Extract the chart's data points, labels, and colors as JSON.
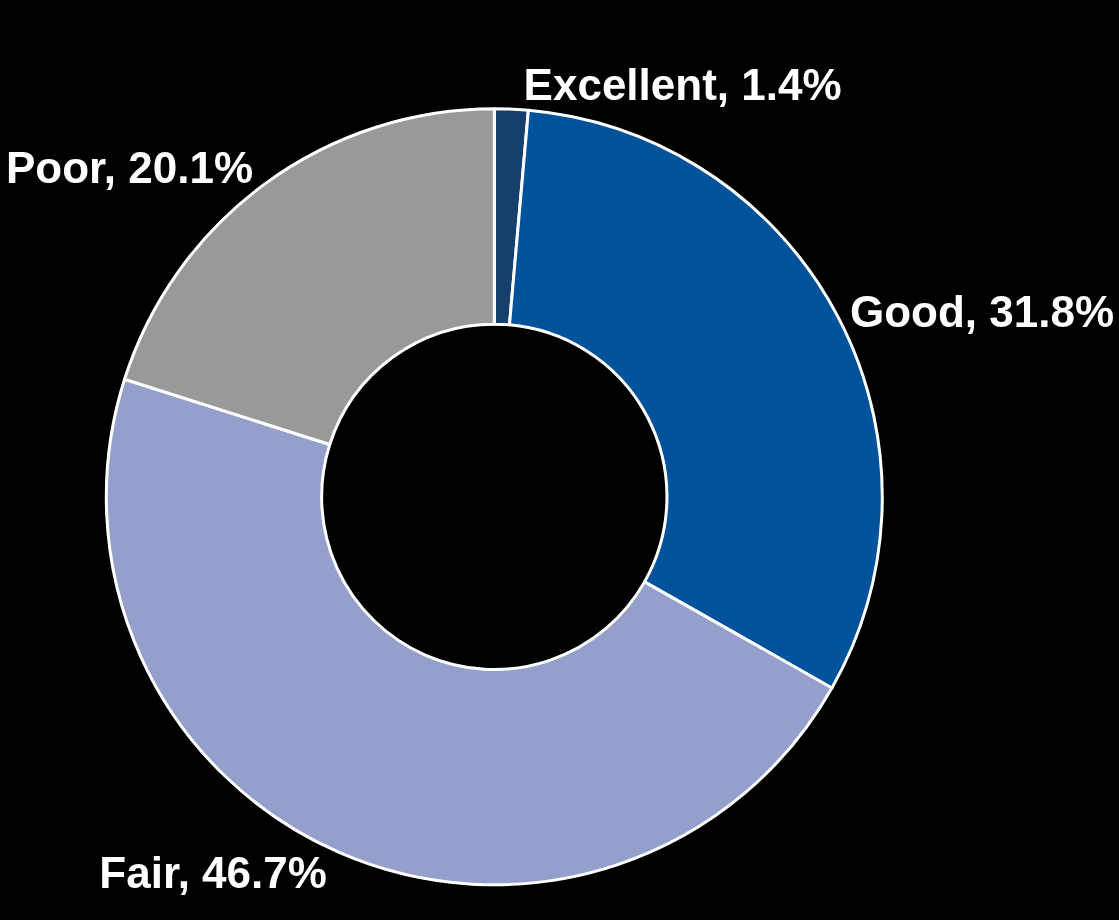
{
  "chart_data": {
    "type": "donut",
    "categories": [
      "Excellent",
      "Good",
      "Fair",
      "Poor"
    ],
    "values": [
      1.4,
      31.8,
      46.7,
      20.1
    ],
    "value_labels": [
      "1.4%",
      "31.8%",
      "46.7%",
      "20.1%"
    ],
    "colors": [
      "#173f6d",
      "#00529b",
      "#94a0cb",
      "#999999"
    ],
    "legend": false
  }
}
